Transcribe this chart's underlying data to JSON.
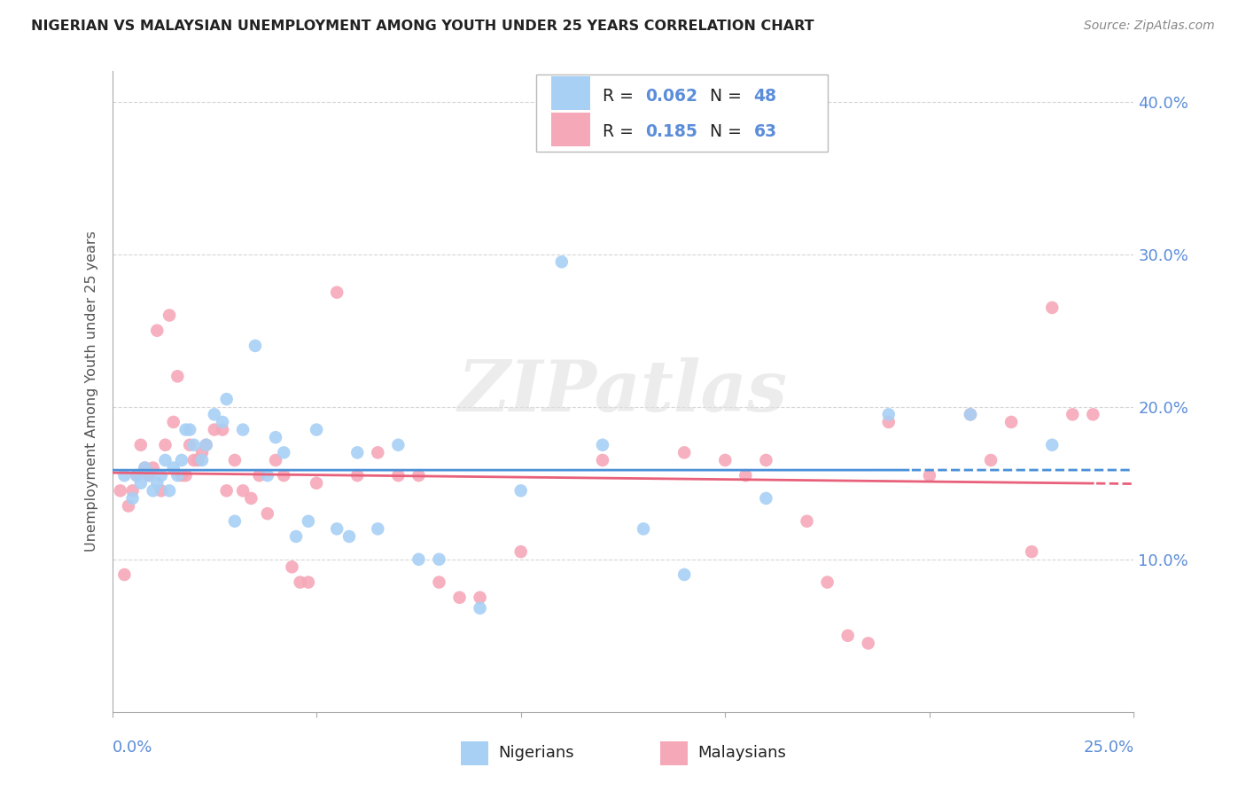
{
  "title": "NIGERIAN VS MALAYSIAN UNEMPLOYMENT AMONG YOUTH UNDER 25 YEARS CORRELATION CHART",
  "source": "Source: ZipAtlas.com",
  "ylabel": "Unemployment Among Youth under 25 years",
  "x_min": 0.0,
  "x_max": 0.25,
  "y_min": 0.0,
  "y_max": 0.42,
  "y_ticks": [
    0.1,
    0.2,
    0.3,
    0.4
  ],
  "y_tick_labels": [
    "10.0%",
    "20.0%",
    "30.0%",
    "40.0%"
  ],
  "watermark": "ZIPatlas",
  "nigerian_color": "#a8d0f5",
  "malaysian_color": "#f5a8b8",
  "trendline_nigerian_color": "#4a90d9",
  "trendline_malaysian_color": "#e8607a",
  "background_color": "#ffffff",
  "grid_color": "#cccccc",
  "axis_label_color": "#5b8dd9",
  "title_color": "#333333",
  "text_black": "#222222",
  "nigerian_points_x": [
    0.003,
    0.005,
    0.006,
    0.007,
    0.008,
    0.009,
    0.01,
    0.011,
    0.012,
    0.013,
    0.014,
    0.015,
    0.016,
    0.017,
    0.018,
    0.019,
    0.02,
    0.022,
    0.023,
    0.025,
    0.027,
    0.028,
    0.03,
    0.032,
    0.035,
    0.038,
    0.04,
    0.042,
    0.045,
    0.048,
    0.05,
    0.055,
    0.058,
    0.06,
    0.065,
    0.07,
    0.075,
    0.08,
    0.09,
    0.1,
    0.11,
    0.12,
    0.13,
    0.14,
    0.16,
    0.19,
    0.21,
    0.23
  ],
  "nigerian_points_y": [
    0.155,
    0.14,
    0.155,
    0.15,
    0.16,
    0.155,
    0.145,
    0.15,
    0.155,
    0.165,
    0.145,
    0.16,
    0.155,
    0.165,
    0.185,
    0.185,
    0.175,
    0.165,
    0.175,
    0.195,
    0.19,
    0.205,
    0.125,
    0.185,
    0.24,
    0.155,
    0.18,
    0.17,
    0.115,
    0.125,
    0.185,
    0.12,
    0.115,
    0.17,
    0.12,
    0.175,
    0.1,
    0.1,
    0.068,
    0.145,
    0.295,
    0.175,
    0.12,
    0.09,
    0.14,
    0.195,
    0.195,
    0.175
  ],
  "malaysian_points_x": [
    0.002,
    0.003,
    0.004,
    0.005,
    0.006,
    0.007,
    0.008,
    0.009,
    0.01,
    0.011,
    0.012,
    0.013,
    0.014,
    0.015,
    0.016,
    0.017,
    0.018,
    0.019,
    0.02,
    0.021,
    0.022,
    0.023,
    0.025,
    0.027,
    0.028,
    0.03,
    0.032,
    0.034,
    0.036,
    0.038,
    0.04,
    0.042,
    0.044,
    0.046,
    0.048,
    0.05,
    0.055,
    0.06,
    0.065,
    0.07,
    0.075,
    0.08,
    0.085,
    0.09,
    0.1,
    0.12,
    0.14,
    0.15,
    0.155,
    0.16,
    0.17,
    0.175,
    0.18,
    0.185,
    0.19,
    0.2,
    0.21,
    0.215,
    0.22,
    0.225,
    0.23,
    0.235,
    0.24
  ],
  "malaysian_points_y": [
    0.145,
    0.09,
    0.135,
    0.145,
    0.155,
    0.175,
    0.16,
    0.155,
    0.16,
    0.25,
    0.145,
    0.175,
    0.26,
    0.19,
    0.22,
    0.155,
    0.155,
    0.175,
    0.165,
    0.165,
    0.17,
    0.175,
    0.185,
    0.185,
    0.145,
    0.165,
    0.145,
    0.14,
    0.155,
    0.13,
    0.165,
    0.155,
    0.095,
    0.085,
    0.085,
    0.15,
    0.275,
    0.155,
    0.17,
    0.155,
    0.155,
    0.085,
    0.075,
    0.075,
    0.105,
    0.165,
    0.17,
    0.165,
    0.155,
    0.165,
    0.125,
    0.085,
    0.05,
    0.045,
    0.19,
    0.155,
    0.195,
    0.165,
    0.19,
    0.105,
    0.265,
    0.195,
    0.195
  ],
  "split_nig": 0.195,
  "split_mal": 0.24,
  "legend_r1": "R = ",
  "legend_v1": "0.062",
  "legend_n1": "N = ",
  "legend_nv1": "48",
  "legend_r2": "R =  ",
  "legend_v2": "0.185",
  "legend_n2": "N = ",
  "legend_nv2": "63"
}
